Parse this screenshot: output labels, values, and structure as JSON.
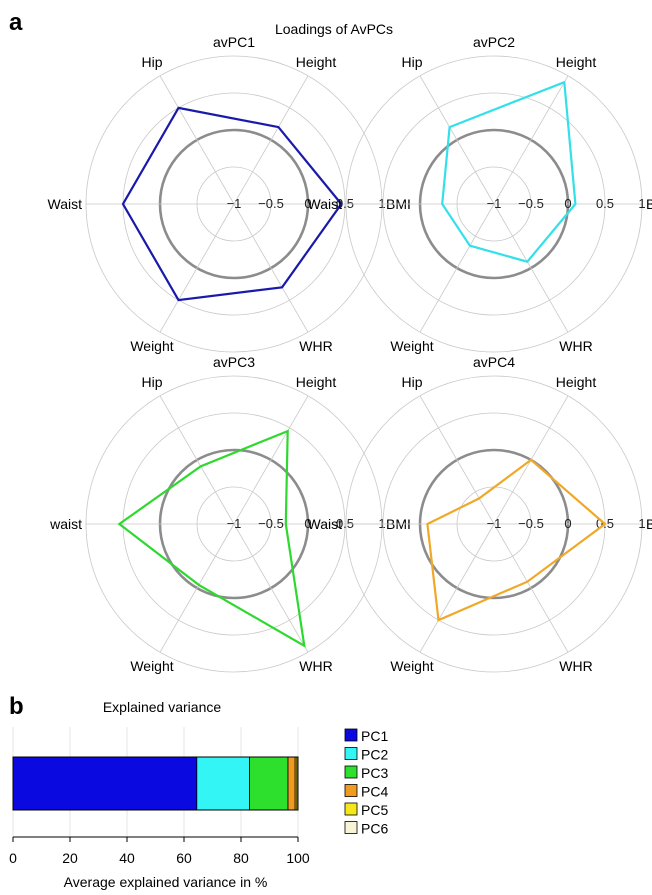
{
  "panel_a": {
    "letter": "a",
    "title": "Loadings of AvPCs"
  },
  "panel_b": {
    "letter": "b",
    "title": "Explained variance"
  },
  "radial_scale": {
    "min": -1,
    "max": 1,
    "ticks": [
      "−1",
      "−0.5",
      "0",
      "0.5",
      "1"
    ]
  },
  "chart_data": [
    {
      "type": "radar",
      "title": "avPC1",
      "color": "#1a1aaa",
      "axes": [
        "BMI",
        "Height",
        "Hip",
        "Waist",
        "Weight",
        "WHR"
      ],
      "values": [
        0.45,
        0.2,
        0.5,
        0.5,
        0.5,
        0.3
      ],
      "rlim": [
        -1,
        1
      ]
    },
    {
      "type": "radar",
      "title": "avPC2",
      "color": "#33e0ea",
      "axes": [
        "BMI",
        "Height",
        "Hip",
        "Waist",
        "Weight",
        "WHR"
      ],
      "values": [
        0.1,
        0.9,
        0.2,
        -0.3,
        -0.35,
        -0.1
      ],
      "rlim": [
        -1,
        1
      ]
    },
    {
      "type": "radar",
      "title": "avPC3",
      "color": "#2fd82f",
      "axes": [
        "BMI",
        "Height",
        "Hip",
        "waist",
        "Weight",
        "WHR"
      ],
      "values": [
        -0.3,
        0.45,
        -0.1,
        0.55,
        -0.05,
        0.9
      ],
      "rlim": [
        -1,
        1
      ]
    },
    {
      "type": "radar",
      "title": "avPC4",
      "color": "#f0a828",
      "axes": [
        "BMI",
        "Height",
        "Hip",
        "Waist",
        "Weight",
        "WHR"
      ],
      "values": [
        0.5,
        0.0,
        -0.6,
        -0.1,
        0.5,
        -0.1
      ],
      "rlim": [
        -1,
        1
      ]
    },
    {
      "type": "bar",
      "orientation": "horizontal",
      "stacked": true,
      "title": "Explained variance",
      "xlabel": "Average explained variance in %",
      "xlim": [
        0,
        100
      ],
      "xticks": [
        0,
        20,
        40,
        60,
        80,
        100
      ],
      "grid": true,
      "legend": "right",
      "series": [
        {
          "name": "PC1",
          "value": 64.5,
          "color": "#0a0ae0"
        },
        {
          "name": "PC2",
          "value": 18.5,
          "color": "#33f5f5"
        },
        {
          "name": "PC3",
          "value": 13.5,
          "color": "#2ee02e"
        },
        {
          "name": "PC4",
          "value": 2.5,
          "color": "#f09a20"
        },
        {
          "name": "PC5",
          "value": 0.6,
          "color": "#f5e81a"
        },
        {
          "name": "PC6",
          "value": 0.4,
          "color": "#f8f4d6"
        }
      ]
    }
  ]
}
